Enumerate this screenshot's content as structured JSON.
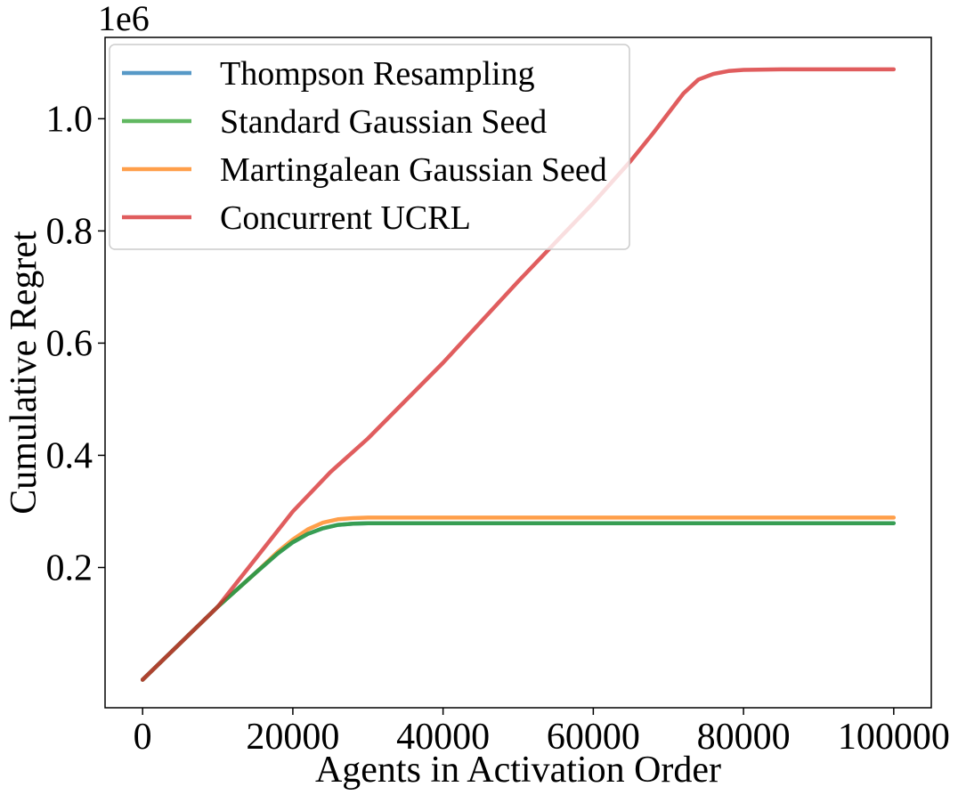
{
  "chart_data": {
    "type": "line",
    "title": "",
    "xlabel": "Agents in Activation Order",
    "ylabel": "Cumulative Regret",
    "y_offset_label": "1e6",
    "xlim": [
      -5000,
      105000
    ],
    "ylim": [
      -0.05,
      1.145
    ],
    "x_ticks": [
      0,
      20000,
      40000,
      60000,
      80000,
      100000
    ],
    "x_tick_labels": [
      "0",
      "20000",
      "40000",
      "60000",
      "80000",
      "100000"
    ],
    "y_ticks": [
      0.2,
      0.4,
      0.6,
      0.8,
      1.0
    ],
    "y_tick_labels": [
      "0.2",
      "0.4",
      "0.6",
      "0.8",
      "1.0"
    ],
    "grid": false,
    "legend_position": "top-left",
    "series": [
      {
        "name": "Thompson Resampling",
        "color": "#1f77b4",
        "x": [
          0,
          5000,
          10000,
          15000,
          18000,
          20000,
          22000,
          24000,
          26000,
          28000,
          30000,
          40000,
          60000,
          80000,
          100000
        ],
        "y": [
          0,
          0.065,
          0.13,
          0.19,
          0.225,
          0.245,
          0.26,
          0.27,
          0.276,
          0.278,
          0.279,
          0.279,
          0.279,
          0.279,
          0.279
        ]
      },
      {
        "name": "Standard Gaussian Seed",
        "color": "#2ca02c",
        "x": [
          0,
          5000,
          10000,
          15000,
          18000,
          20000,
          22000,
          24000,
          26000,
          28000,
          30000,
          40000,
          60000,
          80000,
          100000
        ],
        "y": [
          0,
          0.065,
          0.13,
          0.19,
          0.225,
          0.245,
          0.26,
          0.27,
          0.276,
          0.278,
          0.279,
          0.279,
          0.279,
          0.279,
          0.279
        ]
      },
      {
        "name": "Martingalean Gaussian Seed",
        "color": "#ff7f0e",
        "x": [
          0,
          5000,
          10000,
          15000,
          18000,
          20000,
          22000,
          24000,
          26000,
          28000,
          30000,
          40000,
          60000,
          80000,
          100000
        ],
        "y": [
          0,
          0.065,
          0.13,
          0.19,
          0.228,
          0.25,
          0.268,
          0.28,
          0.286,
          0.288,
          0.289,
          0.289,
          0.289,
          0.289,
          0.289
        ]
      },
      {
        "name": "Concurrent UCRL",
        "color": "#d62728",
        "x": [
          0,
          10000,
          20000,
          25000,
          30000,
          40000,
          50000,
          60000,
          65000,
          68000,
          70000,
          72000,
          74000,
          76000,
          78000,
          80000,
          85000,
          90000,
          100000
        ],
        "y": [
          0,
          0.13,
          0.3,
          0.37,
          0.43,
          0.565,
          0.71,
          0.85,
          0.925,
          0.975,
          1.01,
          1.045,
          1.07,
          1.08,
          1.085,
          1.087,
          1.088,
          1.088,
          1.088
        ]
      }
    ]
  }
}
